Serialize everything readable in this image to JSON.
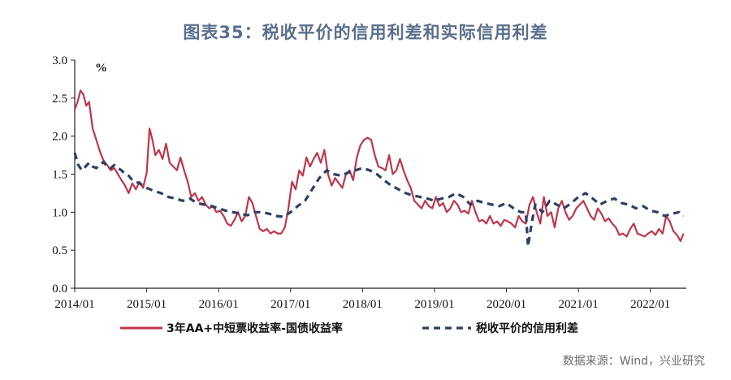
{
  "title": "图表35：税收平价的信用利差和实际信用利差",
  "source": "数据来源：Wind，兴业研究",
  "colors": {
    "series1": "#c0364a",
    "series2": "#2e3f63",
    "axis": "#222222"
  },
  "chart_data": {
    "type": "line",
    "title": "图表35：税收平价的信用利差和实际信用利差",
    "ylabel": "%",
    "xlabel": "",
    "ylim": [
      0.0,
      3.0
    ],
    "y_ticks": [
      "0.0",
      "0.5",
      "1.0",
      "1.5",
      "2.0",
      "2.5",
      "3.0"
    ],
    "x_range": [
      2014.0,
      2022.5
    ],
    "x_ticks": [
      {
        "x": 2014,
        "label": "2014/01"
      },
      {
        "x": 2015,
        "label": "2015/01"
      },
      {
        "x": 2016,
        "label": "2016/01"
      },
      {
        "x": 2017,
        "label": "2017/01"
      },
      {
        "x": 2018,
        "label": "2018/01"
      },
      {
        "x": 2019,
        "label": "2019/01"
      },
      {
        "x": 2020,
        "label": "2020/01"
      },
      {
        "x": 2021,
        "label": "2021/01"
      },
      {
        "x": 2022,
        "label": "2022/01"
      }
    ],
    "legend_position": "bottom",
    "series": [
      {
        "name": "3年AA+中短票收益率-国债收益率",
        "style": "solid",
        "x": [
          2014.0,
          2014.04,
          2014.08,
          2014.12,
          2014.16,
          2014.2,
          2014.25,
          2014.3,
          2014.35,
          2014.4,
          2014.45,
          2014.5,
          2014.55,
          2014.6,
          2014.65,
          2014.7,
          2014.75,
          2014.8,
          2014.85,
          2014.9,
          2014.95,
          2015.0,
          2015.04,
          2015.08,
          2015.12,
          2015.17,
          2015.22,
          2015.27,
          2015.32,
          2015.37,
          2015.42,
          2015.47,
          2015.52,
          2015.57,
          2015.62,
          2015.67,
          2015.72,
          2015.77,
          2015.82,
          2015.87,
          2015.92,
          2015.97,
          2016.02,
          2016.07,
          2016.12,
          2016.17,
          2016.22,
          2016.27,
          2016.32,
          2016.37,
          2016.42,
          2016.47,
          2016.52,
          2016.57,
          2016.62,
          2016.67,
          2016.72,
          2016.77,
          2016.82,
          2016.87,
          2016.92,
          2016.97,
          2017.02,
          2017.07,
          2017.12,
          2017.17,
          2017.22,
          2017.27,
          2017.32,
          2017.37,
          2017.42,
          2017.47,
          2017.52,
          2017.57,
          2017.62,
          2017.67,
          2017.72,
          2017.77,
          2017.82,
          2017.87,
          2017.92,
          2017.97,
          2018.02,
          2018.07,
          2018.12,
          2018.17,
          2018.22,
          2018.27,
          2018.32,
          2018.37,
          2018.42,
          2018.47,
          2018.52,
          2018.57,
          2018.62,
          2018.67,
          2018.72,
          2018.77,
          2018.82,
          2018.87,
          2018.92,
          2018.97,
          2019.02,
          2019.07,
          2019.12,
          2019.17,
          2019.22,
          2019.27,
          2019.32,
          2019.37,
          2019.42,
          2019.47,
          2019.52,
          2019.57,
          2019.62,
          2019.67,
          2019.72,
          2019.77,
          2019.82,
          2019.87,
          2019.92,
          2019.97,
          2020.02,
          2020.07,
          2020.12,
          2020.17,
          2020.22,
          2020.27,
          2020.32,
          2020.37,
          2020.42,
          2020.47,
          2020.52,
          2020.57,
          2020.62,
          2020.67,
          2020.72,
          2020.77,
          2020.82,
          2020.87,
          2020.92,
          2020.97,
          2021.02,
          2021.07,
          2021.12,
          2021.17,
          2021.22,
          2021.27,
          2021.32,
          2021.37,
          2021.42,
          2021.47,
          2021.52,
          2021.57,
          2021.62,
          2021.67,
          2021.72,
          2021.77,
          2021.82,
          2021.87,
          2021.92,
          2021.97,
          2022.02,
          2022.07,
          2022.12,
          2022.17,
          2022.22,
          2022.27,
          2022.32,
          2022.37,
          2022.42,
          2022.46
        ],
        "values": [
          2.35,
          2.45,
          2.6,
          2.55,
          2.4,
          2.45,
          2.1,
          1.95,
          1.8,
          1.68,
          1.62,
          1.55,
          1.58,
          1.5,
          1.42,
          1.35,
          1.25,
          1.38,
          1.3,
          1.4,
          1.32,
          1.52,
          2.1,
          1.95,
          1.75,
          1.82,
          1.7,
          1.9,
          1.65,
          1.6,
          1.55,
          1.72,
          1.55,
          1.4,
          1.2,
          1.25,
          1.15,
          1.2,
          1.1,
          1.05,
          1.08,
          1.0,
          1.02,
          0.95,
          0.85,
          0.82,
          0.9,
          1.0,
          0.88,
          0.95,
          1.2,
          1.12,
          0.95,
          0.78,
          0.75,
          0.78,
          0.72,
          0.75,
          0.72,
          0.72,
          0.8,
          1.05,
          1.4,
          1.3,
          1.55,
          1.48,
          1.72,
          1.6,
          1.7,
          1.78,
          1.65,
          1.82,
          1.5,
          1.35,
          1.45,
          1.38,
          1.32,
          1.5,
          1.55,
          1.42,
          1.72,
          1.88,
          1.95,
          1.98,
          1.95,
          1.75,
          1.6,
          1.58,
          1.55,
          1.75,
          1.5,
          1.55,
          1.7,
          1.55,
          1.42,
          1.32,
          1.15,
          1.1,
          1.05,
          1.15,
          1.08,
          1.05,
          1.2,
          1.08,
          1.12,
          1.0,
          1.05,
          1.15,
          1.1,
          1.0,
          1.02,
          0.98,
          1.15,
          1.0,
          0.88,
          0.9,
          0.85,
          0.95,
          0.85,
          0.88,
          0.82,
          0.9,
          0.88,
          0.85,
          0.8,
          0.95,
          0.88,
          0.85,
          1.1,
          1.2,
          1.0,
          0.85,
          1.2,
          0.95,
          1.0,
          0.8,
          1.05,
          1.15,
          1.0,
          0.9,
          0.95,
          1.05,
          1.1,
          1.15,
          1.05,
          0.95,
          0.9,
          1.05,
          0.98,
          0.88,
          0.92,
          0.85,
          0.8,
          0.7,
          0.72,
          0.68,
          0.78,
          0.85,
          0.72,
          0.7,
          0.68,
          0.72,
          0.75,
          0.7,
          0.78,
          0.72,
          0.95,
          0.88,
          0.75,
          0.7,
          0.62,
          0.72
        ]
      },
      {
        "name": "税收平价的信用利差",
        "style": "dashed",
        "x": [
          2014.0,
          2014.05,
          2014.1,
          2014.15,
          2014.2,
          2014.25,
          2014.3,
          2014.35,
          2014.4,
          2014.45,
          2014.5,
          2014.55,
          2014.6,
          2014.65,
          2014.7,
          2014.75,
          2014.8,
          2014.85,
          2014.9,
          2014.95,
          2015.0,
          2015.1,
          2015.2,
          2015.3,
          2015.4,
          2015.5,
          2015.6,
          2015.7,
          2015.8,
          2015.9,
          2016.0,
          2016.1,
          2016.2,
          2016.3,
          2016.4,
          2016.5,
          2016.6,
          2016.7,
          2016.8,
          2016.9,
          2017.0,
          2017.1,
          2017.2,
          2017.3,
          2017.4,
          2017.5,
          2017.6,
          2017.7,
          2017.8,
          2017.9,
          2018.0,
          2018.1,
          2018.2,
          2018.3,
          2018.4,
          2018.5,
          2018.6,
          2018.7,
          2018.8,
          2018.9,
          2019.0,
          2019.1,
          2019.2,
          2019.3,
          2019.4,
          2019.5,
          2019.6,
          2019.7,
          2019.8,
          2019.9,
          2020.0,
          2020.1,
          2020.2,
          2020.27,
          2020.3,
          2020.35,
          2020.4,
          2020.5,
          2020.6,
          2020.7,
          2020.8,
          2020.9,
          2021.0,
          2021.1,
          2021.2,
          2021.3,
          2021.4,
          2021.5,
          2021.6,
          2021.7,
          2021.8,
          2021.9,
          2022.0,
          2022.1,
          2022.2,
          2022.3,
          2022.4,
          2022.46
        ],
        "values": [
          1.78,
          1.62,
          1.55,
          1.6,
          1.65,
          1.6,
          1.58,
          1.62,
          1.66,
          1.6,
          1.58,
          1.62,
          1.58,
          1.55,
          1.5,
          1.48,
          1.42,
          1.4,
          1.38,
          1.35,
          1.32,
          1.28,
          1.25,
          1.2,
          1.18,
          1.15,
          1.18,
          1.12,
          1.1,
          1.08,
          1.05,
          1.02,
          1.0,
          0.98,
          0.96,
          1.0,
          1.0,
          0.98,
          0.95,
          0.94,
          1.0,
          1.08,
          1.15,
          1.3,
          1.45,
          1.55,
          1.5,
          1.48,
          1.52,
          1.55,
          1.58,
          1.55,
          1.5,
          1.42,
          1.35,
          1.3,
          1.25,
          1.22,
          1.2,
          1.18,
          1.15,
          1.18,
          1.2,
          1.25,
          1.2,
          1.1,
          1.15,
          1.12,
          1.1,
          1.08,
          1.12,
          1.05,
          1.0,
          1.0,
          0.55,
          0.85,
          1.1,
          1.0,
          1.15,
          1.1,
          1.05,
          1.12,
          1.2,
          1.25,
          1.18,
          1.1,
          1.15,
          1.18,
          1.12,
          1.1,
          1.05,
          1.08,
          1.02,
          1.0,
          0.95,
          0.98,
          1.0,
          0.95
        ]
      }
    ]
  }
}
